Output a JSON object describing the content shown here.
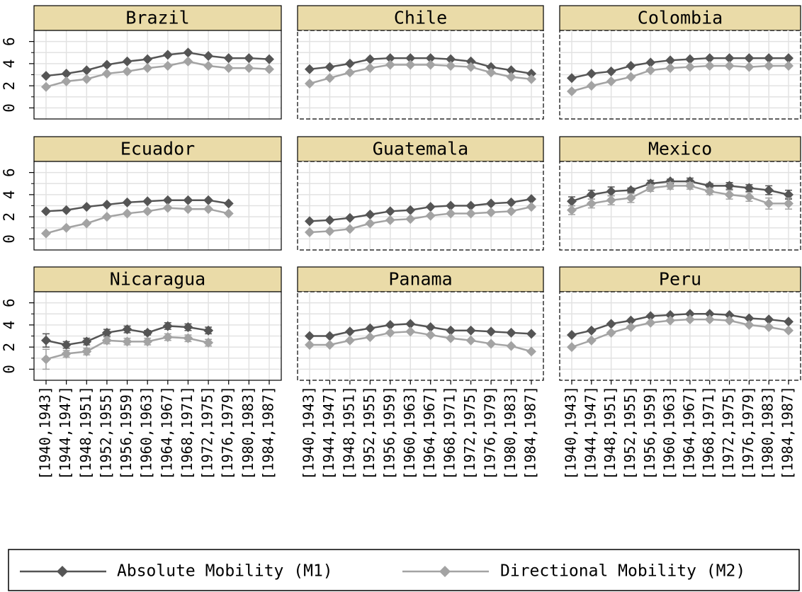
{
  "chart_data": {
    "type": "line",
    "categories": [
      "[1940,1943]",
      "[1944,1947]",
      "[1948,1951]",
      "[1952,1955]",
      "[1956,1959]",
      "[1960,1963]",
      "[1964,1967]",
      "[1968,1971]",
      "[1972,1975]",
      "[1976,1979]",
      "[1980,1983]",
      "[1984,1987]"
    ],
    "ylim": [
      -1,
      7
    ],
    "yticks": [
      0,
      2,
      4,
      6
    ],
    "yminor": [
      1,
      3,
      5
    ],
    "grid": true,
    "series": [
      {
        "name": "Absolute Mobility (M1)",
        "color": "#555555"
      },
      {
        "name": "Directional Mobility (M2)",
        "color": "#a3a3a3"
      }
    ],
    "panels": [
      {
        "title": "Brazil",
        "series": [
          {
            "values": [
              2.9,
              3.1,
              3.4,
              3.9,
              4.2,
              4.4,
              4.8,
              5.0,
              4.7,
              4.5,
              4.5,
              4.4
            ]
          },
          {
            "values": [
              1.9,
              2.4,
              2.6,
              3.1,
              3.3,
              3.6,
              3.8,
              4.2,
              3.8,
              3.6,
              3.6,
              3.5
            ]
          }
        ]
      },
      {
        "title": "Chile",
        "series": [
          {
            "values": [
              3.5,
              3.7,
              4.0,
              4.4,
              4.5,
              4.5,
              4.5,
              4.4,
              4.2,
              3.7,
              3.4,
              3.1
            ]
          },
          {
            "values": [
              2.2,
              2.7,
              3.2,
              3.6,
              3.9,
              3.9,
              3.9,
              3.8,
              3.7,
              3.2,
              2.8,
              2.6
            ]
          }
        ]
      },
      {
        "title": "Colombia",
        "series": [
          {
            "values": [
              2.7,
              3.1,
              3.3,
              3.8,
              4.1,
              4.3,
              4.4,
              4.5,
              4.5,
              4.5,
              4.5,
              4.5
            ]
          },
          {
            "values": [
              1.5,
              2.0,
              2.4,
              2.8,
              3.4,
              3.6,
              3.7,
              3.8,
              3.8,
              3.7,
              3.8,
              3.8
            ]
          }
        ]
      },
      {
        "title": "Ecuador",
        "series": [
          {
            "values": [
              2.5,
              2.6,
              2.9,
              3.1,
              3.3,
              3.4,
              3.5,
              3.5,
              3.5,
              3.2,
              null,
              null
            ]
          },
          {
            "values": [
              0.5,
              1.0,
              1.4,
              2.0,
              2.3,
              2.5,
              2.8,
              2.7,
              2.7,
              2.3,
              null,
              null
            ]
          }
        ]
      },
      {
        "title": "Guatemala",
        "series": [
          {
            "values": [
              1.6,
              1.7,
              1.9,
              2.2,
              2.5,
              2.6,
              2.9,
              3.0,
              3.0,
              3.2,
              3.3,
              3.6
            ]
          },
          {
            "values": [
              0.6,
              0.7,
              0.9,
              1.4,
              1.7,
              1.8,
              2.1,
              2.3,
              2.3,
              2.4,
              2.5,
              2.9
            ]
          }
        ]
      },
      {
        "title": "Mexico",
        "series": [
          {
            "values": [
              3.4,
              4.0,
              4.3,
              4.4,
              5.0,
              5.2,
              5.2,
              4.8,
              4.8,
              4.6,
              4.4,
              4.0
            ],
            "errors": [
              0.4,
              0.4,
              0.4,
              0.2,
              0.3,
              0.2,
              0.3,
              0.2,
              0.3,
              0.3,
              0.4,
              0.4
            ]
          },
          {
            "values": [
              2.6,
              3.2,
              3.5,
              3.7,
              4.6,
              4.8,
              4.8,
              4.3,
              4.0,
              3.8,
              3.2,
              3.2
            ],
            "errors": [
              0.4,
              0.4,
              0.4,
              0.4,
              0.3,
              0.3,
              0.3,
              0.3,
              0.4,
              0.4,
              0.5,
              0.5
            ]
          }
        ]
      },
      {
        "title": "Nicaragua",
        "series": [
          {
            "values": [
              2.6,
              2.2,
              2.5,
              3.3,
              3.6,
              3.3,
              3.9,
              3.8,
              3.5,
              null,
              null,
              null
            ],
            "errors": [
              0.6,
              0.3,
              0.3,
              0.3,
              0.3,
              0.2,
              0.3,
              0.3,
              0.3,
              null,
              null,
              null
            ]
          },
          {
            "values": [
              0.9,
              1.4,
              1.6,
              2.6,
              2.5,
              2.5,
              2.9,
              2.8,
              2.4,
              null,
              null,
              null
            ],
            "errors": [
              0.9,
              0.3,
              0.3,
              0.3,
              0.3,
              0.3,
              0.3,
              0.3,
              0.3,
              null,
              null,
              null
            ]
          }
        ]
      },
      {
        "title": "Panama",
        "series": [
          {
            "values": [
              3.0,
              3.0,
              3.4,
              3.7,
              4.0,
              4.1,
              3.8,
              3.5,
              3.5,
              3.4,
              3.3,
              3.2
            ]
          },
          {
            "values": [
              2.2,
              2.2,
              2.6,
              2.9,
              3.3,
              3.4,
              3.1,
              2.8,
              2.6,
              2.3,
              2.1,
              1.6
            ]
          }
        ]
      },
      {
        "title": "Peru",
        "series": [
          {
            "values": [
              3.1,
              3.5,
              4.1,
              4.4,
              4.8,
              4.9,
              5.0,
              5.0,
              4.9,
              4.6,
              4.5,
              4.3
            ]
          },
          {
            "values": [
              2.0,
              2.6,
              3.3,
              3.8,
              4.2,
              4.4,
              4.5,
              4.5,
              4.4,
              4.0,
              3.8,
              3.5
            ]
          }
        ]
      }
    ]
  }
}
